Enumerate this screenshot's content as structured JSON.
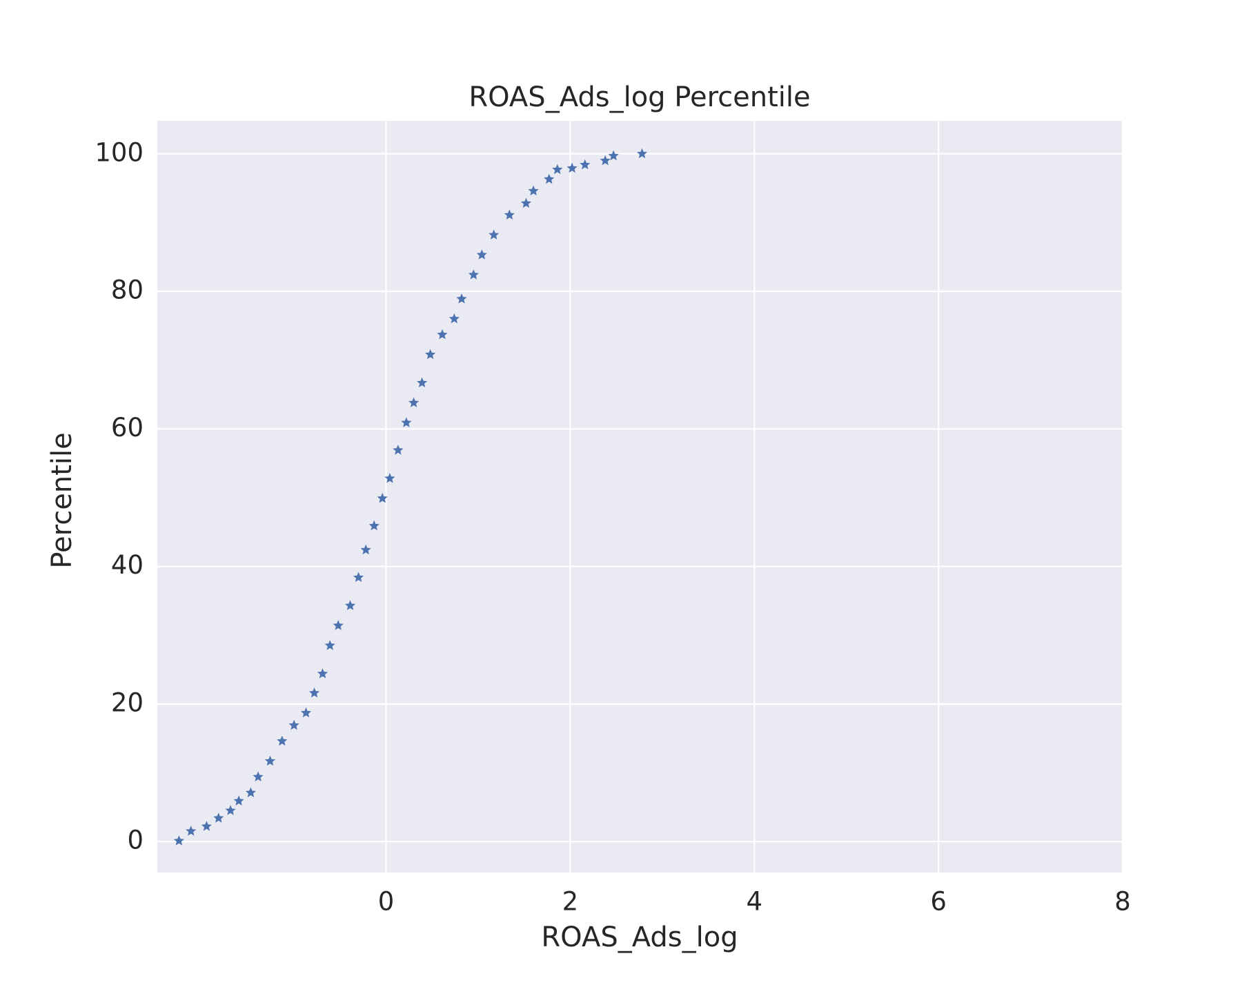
{
  "chart_data": {
    "type": "scatter",
    "title": "ROAS_Ads_log Percentile",
    "x_label": "ROAS_Ads_log",
    "y_label": "Percentile",
    "marker": "star",
    "color": "#4c72b0",
    "background": "#eaeaf2",
    "grid": true,
    "xlim": [
      -2.485,
      8
    ],
    "ylim": [
      -4.5,
      104.8
    ],
    "xticks": [
      0,
      2,
      4,
      6,
      8
    ],
    "yticks": [
      0,
      20,
      40,
      60,
      80,
      100
    ],
    "x": [
      -2.25,
      -2.12,
      -1.95,
      -1.82,
      -1.69,
      -1.6,
      -1.47,
      -1.39,
      -1.26,
      -1.13,
      -1.0,
      -0.87,
      -0.78,
      -0.69,
      -0.61,
      -0.52,
      -0.39,
      -0.3,
      -0.22,
      -0.13,
      -0.04,
      0.04,
      0.13,
      0.22,
      0.3,
      0.39,
      0.48,
      0.61,
      0.74,
      0.82,
      0.95,
      1.04,
      1.17,
      1.34,
      1.52,
      1.6,
      1.77,
      1.86,
      2.02,
      2.16,
      2.38,
      2.47,
      2.78
    ],
    "values": [
      0.1,
      1.5,
      2.2,
      3.4,
      4.5,
      5.9,
      7.1,
      9.4,
      11.7,
      14.6,
      16.9,
      18.7,
      21.6,
      24.4,
      28.5,
      31.4,
      34.3,
      38.4,
      42.4,
      45.9,
      49.9,
      52.8,
      56.9,
      60.9,
      63.8,
      66.7,
      70.8,
      73.7,
      76.0,
      78.9,
      82.4,
      85.3,
      88.2,
      91.1,
      92.8,
      94.6,
      96.3,
      97.7,
      97.9,
      98.4,
      99.0,
      99.7,
      100
    ]
  }
}
